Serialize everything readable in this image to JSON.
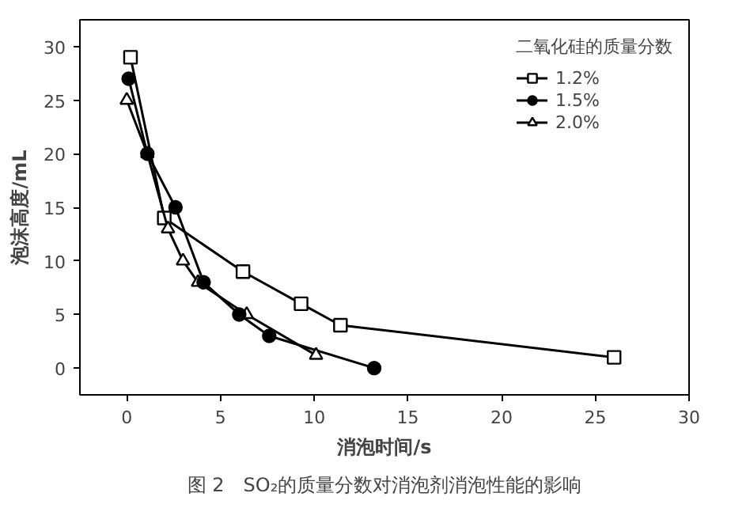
{
  "chart_data": {
    "type": "line",
    "xlabel": "消泡时间/s",
    "ylabel": "泡沫高度/mL",
    "legend_title": "二氧化硅的质量分数",
    "legend": "top right",
    "grid": false,
    "xlim": [
      -2.5,
      30
    ],
    "ylim": [
      -2.5,
      32.5
    ],
    "xticks": [
      0,
      5,
      10,
      15,
      20,
      25,
      30
    ],
    "yticks": [
      0,
      5,
      10,
      15,
      20,
      25,
      30
    ],
    "series": [
      {
        "name": "1.2%",
        "color": "#000000",
        "marker": "square",
        "x": [
          0.2,
          2,
          6.2,
          9.3,
          11.4,
          26
        ],
        "values": [
          29,
          14,
          9,
          6,
          4,
          1
        ]
      },
      {
        "name": "1.5%",
        "color": "#000000",
        "marker": "circle",
        "x": [
          0.1,
          1.1,
          2.6,
          4.1,
          6,
          7.6,
          13.2
        ],
        "values": [
          27,
          20,
          15,
          8,
          5,
          3,
          0
        ]
      },
      {
        "name": "2.0%",
        "color": "#000000",
        "marker": "triangle",
        "x": [
          0,
          1.1,
          2.2,
          3,
          3.8,
          6.4,
          10.1
        ],
        "values": [
          25,
          20,
          13,
          10,
          8,
          5,
          1.2
        ]
      }
    ],
    "annotations": [
      "图 2　SO₂的质量分数对消泡剂消泡性能的影响"
    ]
  }
}
